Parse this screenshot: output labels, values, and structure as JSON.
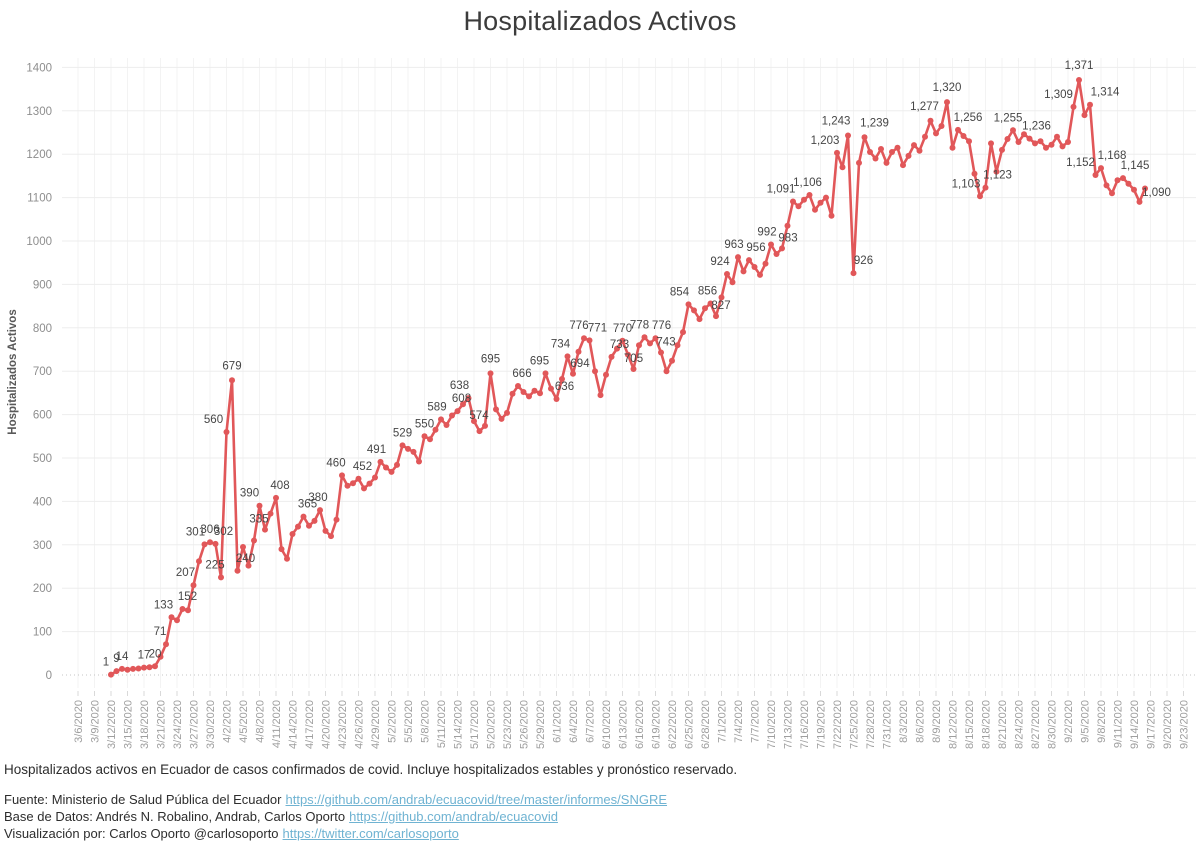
{
  "title": "Hospitalizados Activos",
  "y_axis": {
    "title": "Hospitalizados Activos",
    "ticks": [
      "0",
      "100",
      "200",
      "300",
      "400",
      "500",
      "600",
      "700",
      "800",
      "900",
      "1000",
      "1100",
      "1200",
      "1300",
      "1400"
    ]
  },
  "x_axis": {
    "tick_labels": [
      "3/6/2020",
      "3/9/2020",
      "3/12/2020",
      "3/15/2020",
      "3/18/2020",
      "3/21/2020",
      "3/24/2020",
      "3/27/2020",
      "3/30/2020",
      "4/2/2020",
      "4/5/2020",
      "4/8/2020",
      "4/11/2020",
      "4/14/2020",
      "4/17/2020",
      "4/20/2020",
      "4/23/2020",
      "4/26/2020",
      "4/29/2020",
      "5/2/2020",
      "5/5/2020",
      "5/8/2020",
      "5/11/2020",
      "5/14/2020",
      "5/17/2020",
      "5/20/2020",
      "5/23/2020",
      "5/26/2020",
      "5/29/2020",
      "6/1/2020",
      "6/4/2020",
      "6/7/2020",
      "6/10/2020",
      "6/13/2020",
      "6/16/2020",
      "6/19/2020",
      "6/22/2020",
      "6/25/2020",
      "6/28/2020",
      "7/1/2020",
      "7/4/2020",
      "7/7/2020",
      "7/10/2020",
      "7/13/2020",
      "7/16/2020",
      "7/19/2020",
      "7/22/2020",
      "7/25/2020",
      "7/28/2020",
      "7/31/2020",
      "8/3/2020",
      "8/6/2020",
      "8/9/2020",
      "8/12/2020",
      "8/15/2020",
      "8/18/2020",
      "8/21/2020",
      "8/24/2020",
      "8/27/2020",
      "8/30/2020",
      "9/2/2020",
      "9/5/2020",
      "9/8/2020",
      "9/11/2020",
      "9/14/2020",
      "9/17/2020",
      "9/20/2020",
      "9/23/2020"
    ]
  },
  "chart_data": {
    "type": "line",
    "title": "Hospitalizados Activos",
    "xlabel": "",
    "ylabel": "Hospitalizados Activos",
    "ylim": [
      0,
      1400
    ],
    "grid": true,
    "legend": "none",
    "line_color": "#e15759",
    "point_label_color": "#464646",
    "start_date": "3/12/2020",
    "frequency": "daily",
    "values": [
      1,
      9,
      14,
      12,
      14,
      15,
      17,
      18,
      20,
      42,
      71,
      133,
      126,
      152,
      149,
      207,
      262,
      301,
      306,
      302,
      225,
      560,
      679,
      240,
      295,
      252,
      310,
      390,
      335,
      372,
      408,
      290,
      268,
      325,
      342,
      365,
      344,
      355,
      380,
      332,
      320,
      358,
      460,
      436,
      442,
      452,
      430,
      441,
      455,
      491,
      478,
      468,
      484,
      529,
      521,
      514,
      492,
      550,
      543,
      565,
      589,
      576,
      598,
      608,
      624,
      638,
      585,
      562,
      574,
      695,
      612,
      590,
      604,
      648,
      666,
      652,
      642,
      655,
      649,
      695,
      660,
      636,
      682,
      734,
      694,
      745,
      776,
      771,
      700,
      645,
      692,
      733,
      752,
      770,
      738,
      705,
      760,
      778,
      764,
      776,
      743,
      700,
      724,
      760,
      790,
      854,
      840,
      820,
      845,
      856,
      827,
      870,
      924,
      905,
      963,
      930,
      956,
      940,
      922,
      948,
      992,
      970,
      983,
      1035,
      1091,
      1080,
      1095,
      1106,
      1072,
      1088,
      1100,
      1058,
      1203,
      1170,
      1243,
      926,
      1180,
      1239,
      1205,
      1190,
      1212,
      1180,
      1205,
      1215,
      1175,
      1196,
      1221,
      1208,
      1240,
      1277,
      1248,
      1265,
      1320,
      1215,
      1256,
      1242,
      1230,
      1155,
      1103,
      1123,
      1225,
      1160,
      1210,
      1235,
      1255,
      1228,
      1246,
      1236,
      1225,
      1230,
      1215,
      1222,
      1240,
      1218,
      1228,
      1309,
      1371,
      1290,
      1314,
      1152,
      1168,
      1128,
      1110,
      1140,
      1145,
      1132,
      1118,
      1090,
      1121
    ],
    "point_labels": [
      [
        0,
        "1",
        -5,
        0
      ],
      [
        1,
        "9",
        0,
        0
      ],
      [
        2,
        "14",
        0,
        0
      ],
      [
        6,
        "17",
        0,
        0
      ],
      [
        8,
        "20",
        0,
        0
      ],
      [
        10,
        "71",
        -6,
        0
      ],
      [
        11,
        "133",
        -8,
        0
      ],
      [
        13,
        "152",
        5,
        0
      ],
      [
        15,
        "207",
        -8,
        0
      ],
      [
        17,
        "301",
        -9,
        0
      ],
      [
        18,
        "306",
        0,
        0
      ],
      [
        19,
        "302",
        8,
        0
      ],
      [
        20,
        "225",
        -6,
        0
      ],
      [
        21,
        "560",
        -13,
        0
      ],
      [
        22,
        "679",
        0,
        -2
      ],
      [
        23,
        "240",
        8,
        0
      ],
      [
        27,
        "390",
        -10,
        0
      ],
      [
        28,
        "335",
        -6,
        2
      ],
      [
        30,
        "408",
        4,
        0
      ],
      [
        35,
        "365",
        4,
        0
      ],
      [
        38,
        "380",
        -2,
        0
      ],
      [
        42,
        "460",
        -6,
        0
      ],
      [
        45,
        "452",
        4,
        0
      ],
      [
        49,
        "491",
        -4,
        0
      ],
      [
        53,
        "529",
        0,
        0
      ],
      [
        57,
        "550",
        0,
        0
      ],
      [
        60,
        "589",
        -4,
        0
      ],
      [
        63,
        "608",
        4,
        0
      ],
      [
        65,
        "638",
        -9,
        0
      ],
      [
        68,
        "574",
        -6,
        2
      ],
      [
        69,
        "695",
        0,
        -2
      ],
      [
        74,
        "666",
        4,
        0
      ],
      [
        79,
        "695",
        -6,
        0
      ],
      [
        81,
        "636",
        8,
        0
      ],
      [
        83,
        "734",
        -7,
        0
      ],
      [
        84,
        "694",
        7,
        2
      ],
      [
        86,
        "776",
        -5,
        0
      ],
      [
        87,
        "771",
        8,
        0
      ],
      [
        91,
        "733",
        8,
        0
      ],
      [
        93,
        "770",
        0,
        0
      ],
      [
        95,
        "705",
        0,
        2
      ],
      [
        97,
        "778",
        -5,
        0
      ],
      [
        99,
        "776",
        6,
        0
      ],
      [
        100,
        "743",
        5,
        2
      ],
      [
        105,
        "854",
        -9,
        0
      ],
      [
        109,
        "856",
        -3,
        0
      ],
      [
        110,
        "827",
        5,
        2
      ],
      [
        112,
        "924",
        -7,
        0
      ],
      [
        114,
        "963",
        -4,
        0
      ],
      [
        116,
        "956",
        7,
        0
      ],
      [
        120,
        "992",
        -4,
        0
      ],
      [
        122,
        "983",
        6,
        2
      ],
      [
        124,
        "1,091",
        -12,
        0
      ],
      [
        127,
        "1,106",
        -2,
        0
      ],
      [
        132,
        "1,203",
        -12,
        0
      ],
      [
        134,
        "1,243",
        -12,
        -2
      ],
      [
        135,
        "926",
        10,
        0
      ],
      [
        137,
        "1,239",
        10,
        -2
      ],
      [
        149,
        "1,277",
        -6,
        -2
      ],
      [
        152,
        "1,320",
        0,
        -2
      ],
      [
        154,
        "1,256",
        10,
        0
      ],
      [
        158,
        "1,103",
        -14,
        0
      ],
      [
        159,
        "1,123",
        12,
        0
      ],
      [
        164,
        "1,255",
        -5,
        0
      ],
      [
        167,
        "1,236",
        7,
        0
      ],
      [
        175,
        "1,309",
        -15,
        0
      ],
      [
        176,
        "1,371",
        0,
        -2
      ],
      [
        178,
        "1,314",
        15,
        0
      ],
      [
        179,
        "1,152",
        -15,
        0
      ],
      [
        180,
        "1,168",
        11,
        0
      ],
      [
        184,
        "1,145",
        12,
        0
      ],
      [
        187,
        "1,090",
        17,
        3
      ]
    ]
  },
  "footer": {
    "caption": "Hospitalizados activos en Ecuador de casos confirmados de covid. Incluye hospitalizados estables y pronóstico reservado.",
    "source_label": "Fuente: Ministerio de Salud Pública del Ecuador",
    "source_url": "https://github.com/andrab/ecuacovid/tree/master/informes/SNGRE",
    "database_label": "Base de Datos: Andrés N. Robalino, Andrab, Carlos Oporto",
    "database_url": "https://github.com/andrab/ecuacovid",
    "viz_label": "Visualización por: Carlos Oporto @carlosoporto",
    "viz_url": "https://twitter.com/carlosoporto"
  },
  "colors": {
    "line": "#e15759",
    "link": "#6fb3d2",
    "grid": "#ededed",
    "axis_text": "#9e9e9e",
    "point_label": "#464646"
  }
}
